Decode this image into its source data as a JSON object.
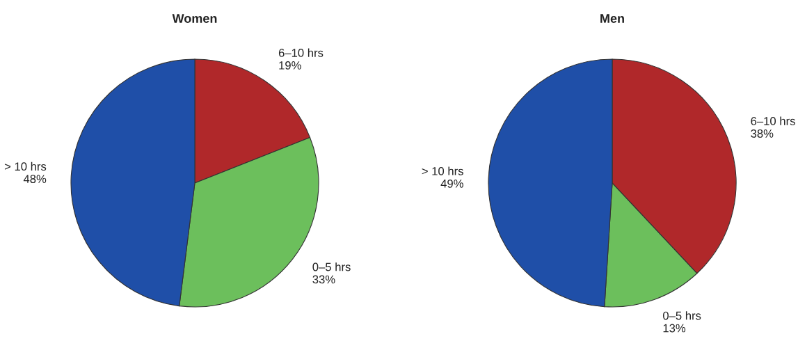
{
  "chart_data": [
    {
      "type": "pie",
      "title": "Women",
      "categories": [
        "6–10 hrs",
        "0–5 hrs",
        "> 10 hrs"
      ],
      "values": [
        19,
        33,
        48
      ],
      "value_labels": [
        "19%",
        "33%",
        "48%"
      ],
      "colors": [
        "#b0282a",
        "#6cbf5c",
        "#1f4fa8"
      ]
    },
    {
      "type": "pie",
      "title": "Men",
      "categories": [
        "6–10 hrs",
        "0–5 hrs",
        "> 10 hrs"
      ],
      "values": [
        38,
        13,
        49
      ],
      "value_labels": [
        "38%",
        "13%",
        "49%"
      ],
      "colors": [
        "#b0282a",
        "#6cbf5c",
        "#1f4fa8"
      ]
    }
  ]
}
